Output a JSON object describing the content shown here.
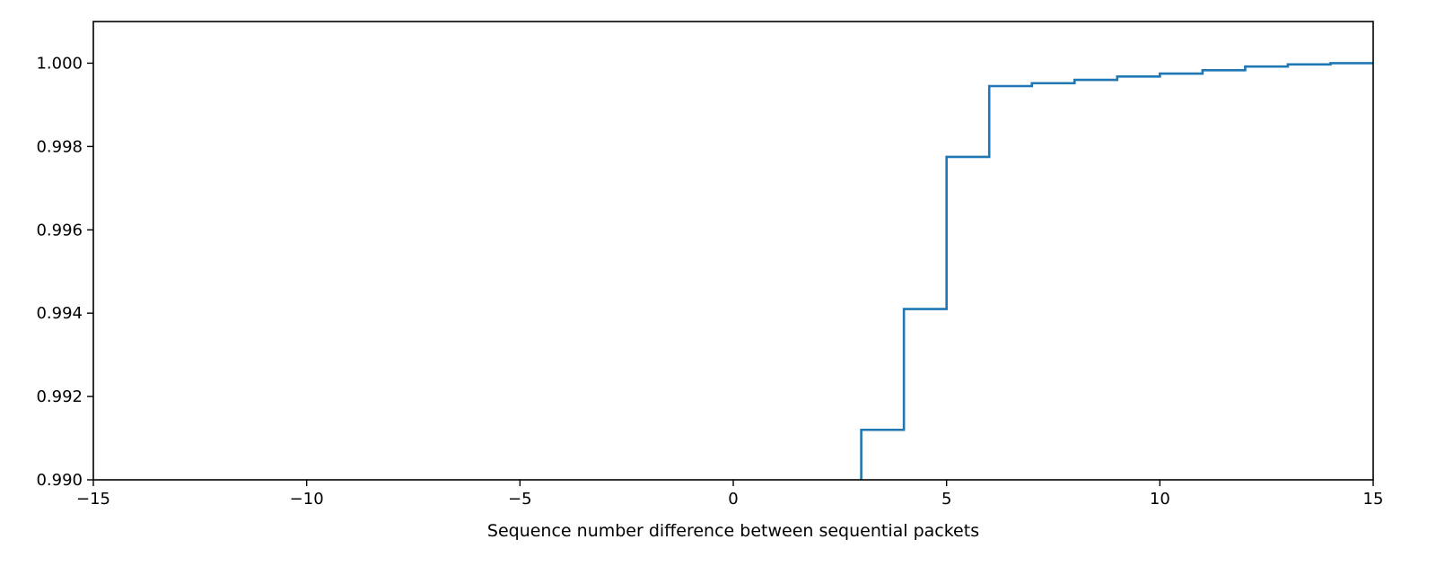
{
  "chart_data": {
    "type": "line",
    "step": "post",
    "title": "",
    "xlabel": "Sequence number difference between sequential packets",
    "ylabel": "",
    "xlim": [
      -15,
      15
    ],
    "ylim": [
      0.99,
      1.001
    ],
    "xticks": [
      -15,
      -10,
      -5,
      0,
      5,
      10,
      15
    ],
    "xtick_labels": [
      "−15",
      "−10",
      "−5",
      "0",
      "5",
      "10",
      "15"
    ],
    "yticks": [
      0.99,
      0.992,
      0.994,
      0.996,
      0.998,
      1.0
    ],
    "ytick_labels": [
      "0.990",
      "0.992",
      "0.994",
      "0.996",
      "0.998",
      "1.000"
    ],
    "grid": false,
    "legend": "none",
    "series": [
      {
        "color": "#1f77b4",
        "x": [
          3,
          3,
          4,
          5,
          6,
          7,
          8,
          9,
          10,
          11,
          12,
          13,
          14,
          15
        ],
        "y": [
          0.989,
          0.9912,
          0.9941,
          0.99775,
          0.99945,
          0.99952,
          0.9996,
          0.99968,
          0.99975,
          0.99983,
          0.99992,
          0.99997,
          1.0,
          1.0
        ]
      }
    ]
  }
}
